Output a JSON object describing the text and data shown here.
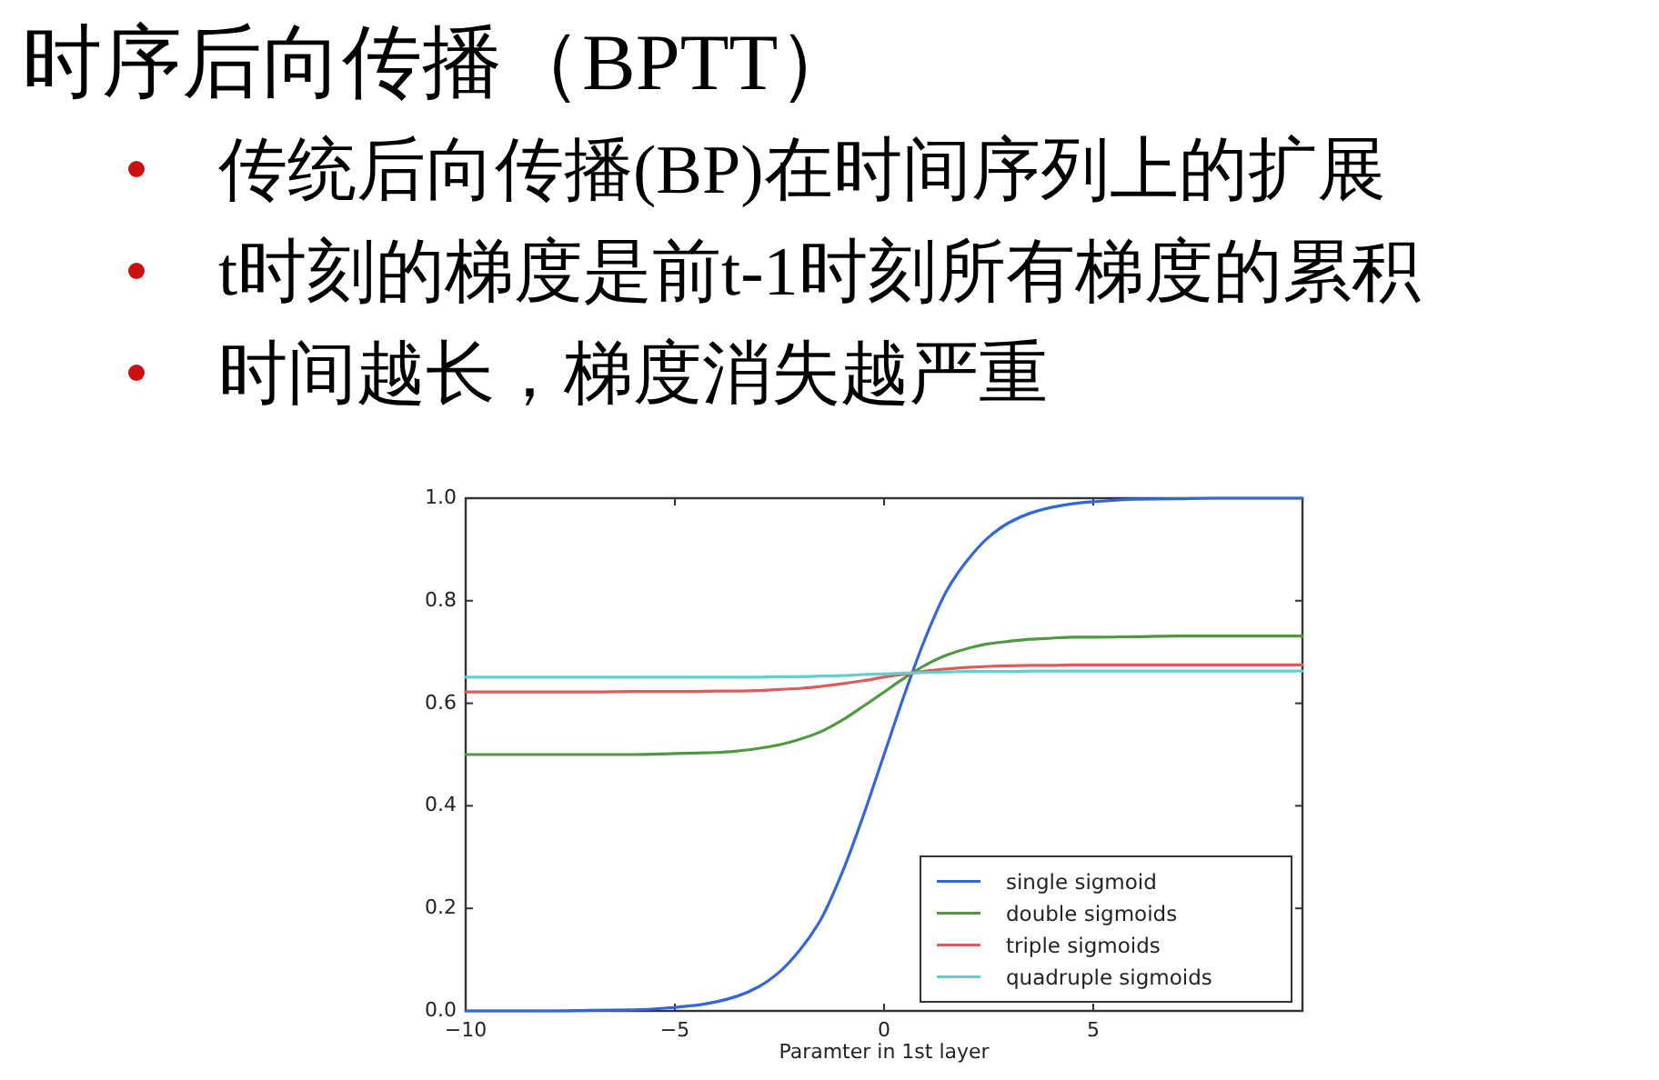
{
  "chart_data": {
    "type": "line",
    "title": "时序后向传播（BPTT）",
    "annotations": [
      "传统后向传播(BP)在时间序列上的扩展",
      "t时刻的梯度是前t-1时刻所有梯度的累积",
      "时间越长，梯度消失越严重"
    ],
    "xlabel": "Paramter in 1st layer",
    "x": [
      -10,
      -8,
      -7,
      -6,
      -5,
      -4.5,
      -4,
      -3.5,
      -3,
      -2.5,
      -2,
      -1.5,
      -1,
      -0.5,
      0,
      0.5,
      1,
      1.5,
      2,
      2.5,
      3,
      3.5,
      4,
      4.5,
      5,
      6,
      7,
      8,
      10
    ],
    "series": [
      {
        "name": "single sigmoid",
        "color": "#3366dd",
        "values": [
          0,
          0,
          0.001,
          0.002,
          0.007,
          0.011,
          0.018,
          0.029,
          0.047,
          0.076,
          0.12,
          0.18,
          0.27,
          0.38,
          0.5,
          0.62,
          0.73,
          0.82,
          0.88,
          0.924,
          0.953,
          0.971,
          0.982,
          0.989,
          0.993,
          0.998,
          0.999,
          1,
          1
        ]
      },
      {
        "name": "double sigmoids",
        "color": "#4f9a3f",
        "values": [
          0.5,
          0.5,
          0.5,
          0.5,
          0.502,
          0.503,
          0.504,
          0.507,
          0.512,
          0.519,
          0.53,
          0.545,
          0.567,
          0.594,
          0.622,
          0.65,
          0.675,
          0.694,
          0.707,
          0.716,
          0.721,
          0.725,
          0.727,
          0.729,
          0.729,
          0.73,
          0.731,
          0.731,
          0.731
        ]
      },
      {
        "name": "triple sigmoids",
        "color": "#e05a5a",
        "values": [
          0.622,
          0.622,
          0.622,
          0.623,
          0.623,
          0.623,
          0.624,
          0.624,
          0.625,
          0.627,
          0.629,
          0.633,
          0.638,
          0.644,
          0.651,
          0.657,
          0.663,
          0.667,
          0.67,
          0.672,
          0.673,
          0.674,
          0.674,
          0.675,
          0.675,
          0.675,
          0.675,
          0.675,
          0.675
        ]
      },
      {
        "name": "quadruple sigmoids",
        "color": "#5fcfcf",
        "values": [
          0.651,
          0.651,
          0.651,
          0.651,
          0.651,
          0.651,
          0.651,
          0.651,
          0.651,
          0.652,
          0.652,
          0.653,
          0.654,
          0.656,
          0.657,
          0.659,
          0.66,
          0.661,
          0.662,
          0.662,
          0.662,
          0.663,
          0.663,
          0.663,
          0.663,
          0.663,
          0.663,
          0.663,
          0.663
        ]
      }
    ],
    "xlim": [
      -10,
      10
    ],
    "ylim": [
      0,
      1
    ],
    "xticks": [
      {
        "value": -10,
        "label": "−10"
      },
      {
        "value": -5,
        "label": "−5"
      },
      {
        "value": 0,
        "label": "0"
      },
      {
        "value": 5,
        "label": "5"
      },
      {
        "value": 10,
        "label": null
      }
    ],
    "yticks": [
      {
        "value": 0,
        "label": "0.0"
      },
      {
        "value": 0.2,
        "label": "0.2"
      },
      {
        "value": 0.4,
        "label": "0.4"
      },
      {
        "value": 0.6,
        "label": "0.6"
      },
      {
        "value": 0.8,
        "label": "0.8"
      },
      {
        "value": 1,
        "label": "1.0"
      }
    ],
    "legend": "bottom right"
  }
}
